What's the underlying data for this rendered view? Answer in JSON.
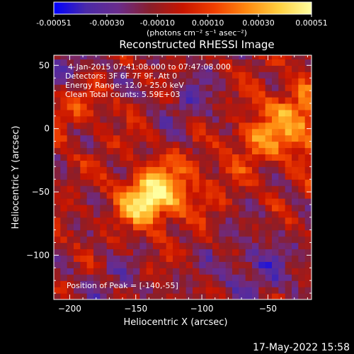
{
  "chart_data": {
    "type": "heatmap",
    "title": "Reconstructed RHESSI Image",
    "colorbar": {
      "ticks": [
        "-0.00051",
        "-0.00030",
        "-0.00010",
        "0.00010",
        "0.00030",
        "0.00051"
      ],
      "tick_values": [
        -0.00051,
        -0.0003,
        -0.0001,
        0.0001,
        0.0003,
        0.00051
      ],
      "range": [
        -0.00051,
        0.00051
      ],
      "unit_label": "(photons cm⁻² s⁻¹ asec⁻²)",
      "colormap": [
        "#0000ff",
        "#4a2aa8",
        "#6a2c8c",
        "#8a1e2a",
        "#c81500",
        "#f04000",
        "#ff8a10",
        "#ffd040",
        "#ffffa0"
      ]
    },
    "xlabel": "Heliocentric X (arcsec)",
    "ylabel": "Heliocentric Y (arcsec)",
    "xlim": [
      -212,
      -17
    ],
    "ylim": [
      -135,
      58
    ],
    "xticks": [
      -200,
      -150,
      -100,
      -50
    ],
    "yticks": [
      50,
      0,
      -50,
      -100
    ],
    "annotations": [
      "4-Jan-2015 07:41:08.000 to 07:47:08.000",
      "Detectors: 3F 6F 7F 9F, Att 0",
      "Energy Range: 12.0 - 25.0 keV",
      "Clean     Total counts: 5.59E+03"
    ],
    "peak_label": "Position of Peak = [-140,-55]",
    "peak": [
      -140,
      -55
    ],
    "sources": [
      {
        "x": -140,
        "y": -55,
        "amp": 1.0,
        "r": 14
      },
      {
        "x": -25,
        "y": 5,
        "amp": 0.55,
        "r": 22
      },
      {
        "x": -60,
        "y": -8,
        "amp": 0.35,
        "r": 12
      },
      {
        "x": -195,
        "y": 20,
        "amp": 0.25,
        "r": 14
      },
      {
        "x": -110,
        "y": -40,
        "amp": 0.3,
        "r": 18
      },
      {
        "x": -60,
        "y": -110,
        "amp": -0.3,
        "r": 22
      },
      {
        "x": -170,
        "y": -125,
        "amp": -0.2,
        "r": 18
      },
      {
        "x": -110,
        "y": 20,
        "amp": -0.25,
        "r": 18
      },
      {
        "x": -200,
        "y": 50,
        "amp": -0.3,
        "r": 14
      }
    ]
  },
  "timestamp": "17-May-2022 15:58"
}
